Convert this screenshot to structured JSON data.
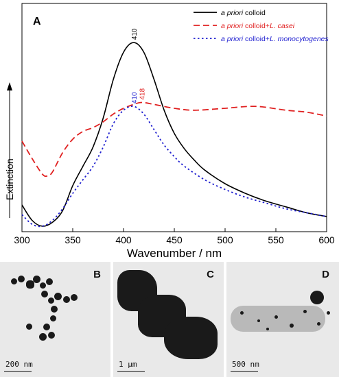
{
  "chart_data": {
    "type": "line",
    "panel_label": "A",
    "xlabel": "Wavenumber / nm",
    "ylabel": "Extinction",
    "xlim": [
      300,
      600
    ],
    "x_ticks": [
      "300",
      "350",
      "400",
      "450",
      "500",
      "550",
      "600"
    ],
    "legend_position": "top-right",
    "series": [
      {
        "legend_italic": "a priori",
        "legend_rest": " colloid",
        "color": "#000000",
        "dash": "solid",
        "x": [
          300,
          310,
          320,
          330,
          340,
          350,
          360,
          370,
          380,
          390,
          400,
          410,
          420,
          430,
          440,
          450,
          460,
          470,
          480,
          500,
          520,
          540,
          560,
          580,
          600
        ],
        "y": [
          0.11,
          0.03,
          0.0,
          0.02,
          0.08,
          0.21,
          0.31,
          0.41,
          0.56,
          0.76,
          0.9,
          0.95,
          0.9,
          0.76,
          0.6,
          0.48,
          0.4,
          0.34,
          0.29,
          0.22,
          0.17,
          0.13,
          0.1,
          0.07,
          0.05
        ]
      },
      {
        "legend_italic": "a priori",
        "legend_rest": " colloid+",
        "legend_italic2": "L. casei",
        "color": "#e02020",
        "dash": "dashed",
        "x": [
          300,
          310,
          320,
          325,
          330,
          340,
          350,
          360,
          370,
          380,
          390,
          400,
          410,
          418,
          430,
          450,
          470,
          500,
          530,
          560,
          580,
          600
        ],
        "y": [
          0.44,
          0.35,
          0.27,
          0.26,
          0.28,
          0.38,
          0.45,
          0.49,
          0.51,
          0.54,
          0.58,
          0.61,
          0.63,
          0.64,
          0.63,
          0.61,
          0.6,
          0.61,
          0.62,
          0.6,
          0.59,
          0.57
        ]
      },
      {
        "legend_italic": "a priori",
        "legend_rest": " colloid+",
        "legend_italic2": "L. monocytogenes",
        "color": "#1f1fd0",
        "dash": "dotted",
        "x": [
          300,
          310,
          320,
          330,
          340,
          350,
          360,
          370,
          380,
          390,
          400,
          410,
          420,
          430,
          440,
          450,
          460,
          480,
          500,
          520,
          540,
          560,
          580,
          600
        ],
        "y": [
          0.06,
          0.01,
          0.0,
          0.03,
          0.09,
          0.17,
          0.24,
          0.31,
          0.41,
          0.53,
          0.6,
          0.62,
          0.58,
          0.5,
          0.42,
          0.36,
          0.31,
          0.24,
          0.19,
          0.15,
          0.12,
          0.09,
          0.07,
          0.05
        ]
      }
    ],
    "peak_labels": [
      {
        "text": "410",
        "x": 410,
        "y": 0.95,
        "color": "#000000"
      },
      {
        "text": "418",
        "x": 418,
        "y": 0.64,
        "color": "#e02020"
      },
      {
        "text": "410",
        "x": 410,
        "y": 0.62,
        "color": "#1f1fd0"
      }
    ]
  },
  "tem_panels": [
    {
      "letter": "B",
      "scale": "200 nm"
    },
    {
      "letter": "C",
      "scale": "1 µm"
    },
    {
      "letter": "D",
      "scale": "500 nm"
    }
  ]
}
